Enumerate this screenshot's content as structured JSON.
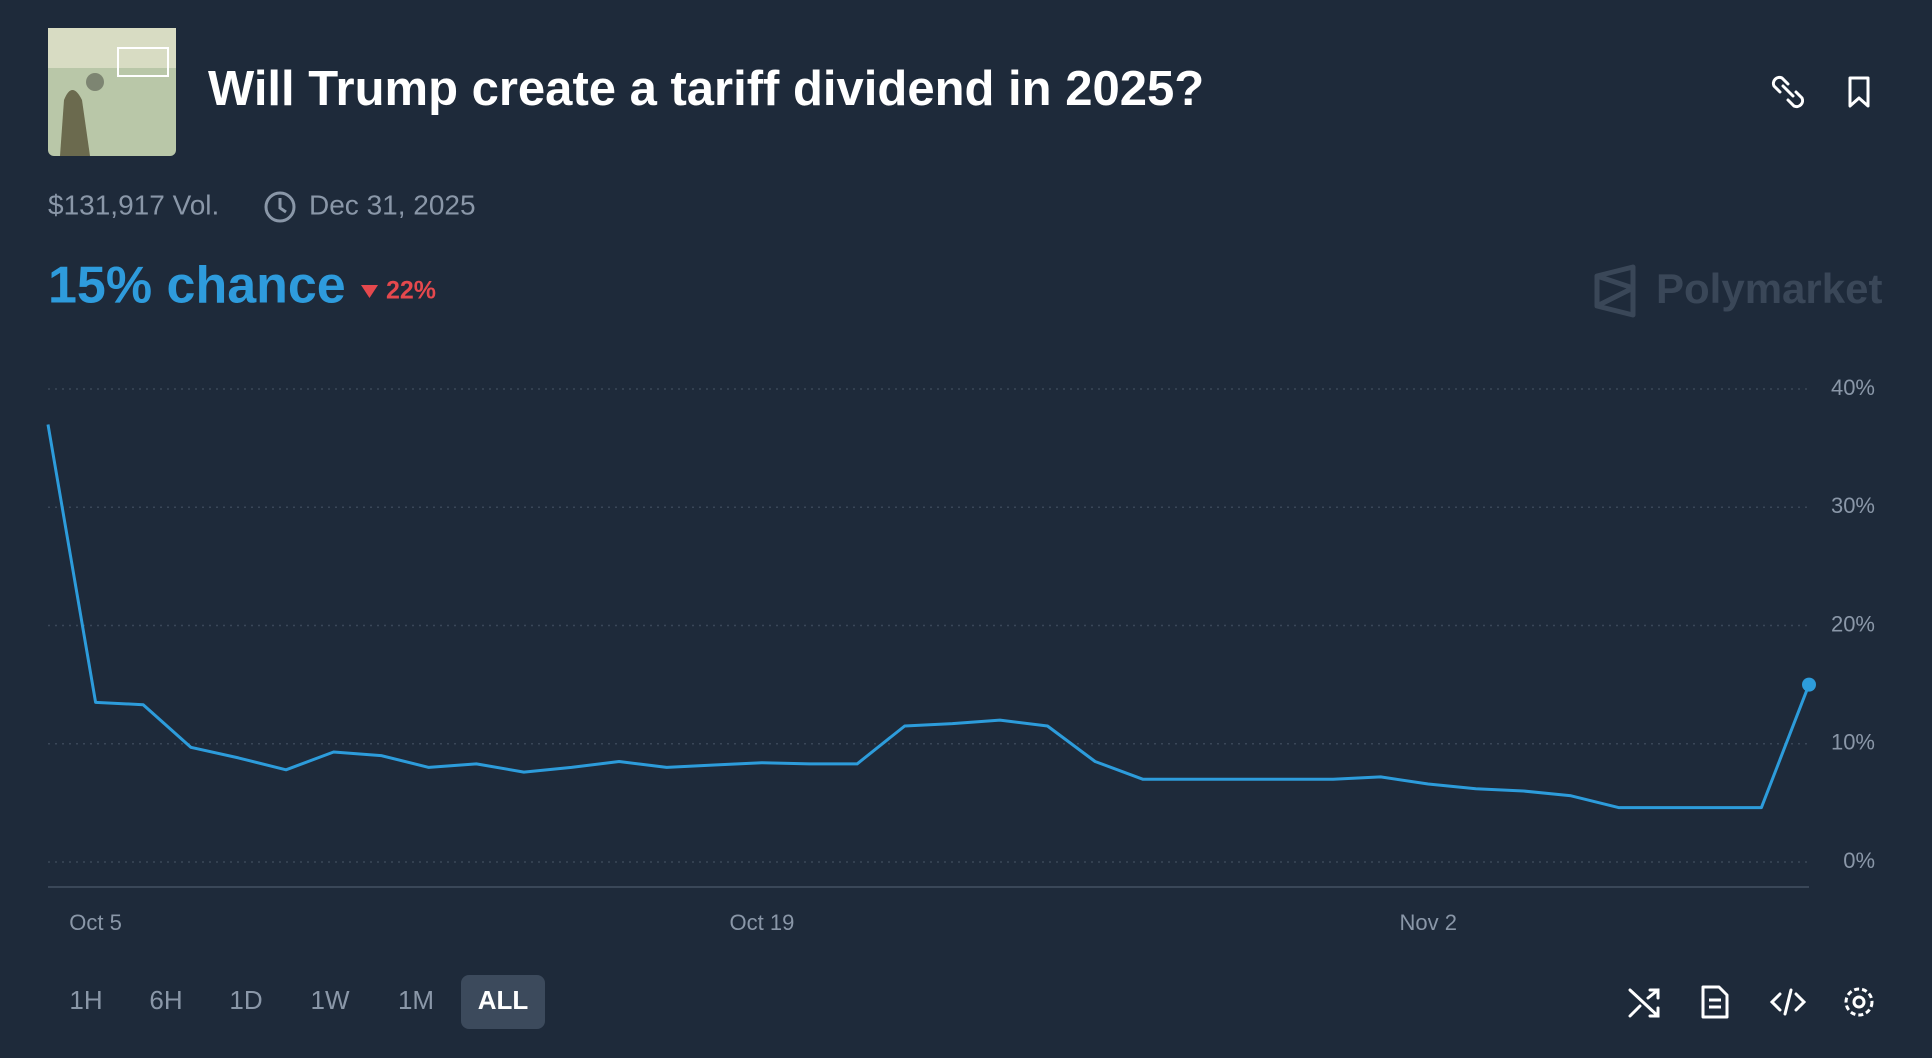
{
  "header": {
    "title": "Will Trump create a tariff dividend in 2025?",
    "volume": "$131,917 Vol.",
    "end_date": "Dec 31, 2025",
    "chance": "15% chance",
    "change": "22%",
    "brand": "Polymarket"
  },
  "range_buttons": [
    "1H",
    "6H",
    "1D",
    "1W",
    "1M",
    "ALL"
  ],
  "active_range": "ALL",
  "chart_data": {
    "type": "line",
    "color": "#2d9cdb",
    "x": [
      "Oct 4",
      "Oct 5",
      "Oct 6",
      "Oct 7",
      "Oct 8",
      "Oct 9",
      "Oct 10",
      "Oct 11",
      "Oct 12",
      "Oct 13",
      "Oct 14",
      "Oct 15",
      "Oct 16",
      "Oct 17",
      "Oct 18",
      "Oct 19",
      "Oct 20",
      "Oct 21",
      "Oct 22",
      "Oct 23",
      "Oct 24",
      "Oct 25",
      "Oct 26",
      "Oct 27",
      "Oct 28",
      "Oct 29",
      "Oct 30",
      "Oct 31",
      "Nov 1",
      "Nov 2",
      "Nov 3",
      "Nov 4",
      "Nov 5",
      "Nov 6",
      "Nov 7",
      "Nov 8",
      "Nov 9",
      "Nov 10"
    ],
    "values": [
      37,
      13.5,
      13.3,
      9.7,
      8.8,
      7.8,
      9.3,
      9,
      8,
      8.3,
      7.6,
      8,
      8.5,
      8,
      8.2,
      8.4,
      8.3,
      8.3,
      11.5,
      11.7,
      12,
      11.5,
      8.5,
      7,
      7,
      7,
      7,
      7,
      7.2,
      6.6,
      6.2,
      6,
      5.6,
      4.6,
      4.6,
      4.6,
      4.6,
      15
    ],
    "xticks": [
      "Oct 5",
      "Oct 19",
      "Nov 2"
    ],
    "ylim": [
      0,
      40
    ],
    "yticks": [
      {
        "value": 0,
        "label": "0%"
      },
      {
        "value": 10,
        "label": "10%"
      },
      {
        "value": 20,
        "label": "20%"
      },
      {
        "value": 30,
        "label": "30%"
      },
      {
        "value": 40,
        "label": "40%"
      }
    ],
    "grid": true
  }
}
